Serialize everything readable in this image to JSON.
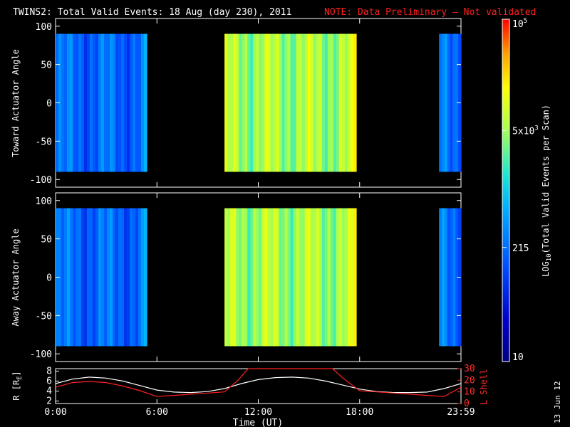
{
  "title": "TWINS2: Total Valid Events: 18 Aug (day 230), 2011",
  "note": "NOTE: Data Preliminary — Not validated",
  "date_stamp": "13 Jun 12",
  "colorbar": {
    "label": "LOG10(Total Valid Events per Scan)",
    "label_main": "LOG",
    "label_sub": "10",
    "label_rest": "(Total Valid Events per Scan)",
    "ticks": [
      {
        "base": "10",
        "exp": "",
        "value": 10
      },
      {
        "base": "215",
        "exp": "",
        "value": 215
      },
      {
        "base": "5x10",
        "exp": "3",
        "value": 5000
      },
      {
        "base": "10",
        "exp": "5",
        "value": 100000
      }
    ],
    "range": [
      10,
      100000
    ],
    "scale": "log"
  },
  "chart_data": [
    {
      "type": "heatmap",
      "ylabel": "Toward Actuator Angle",
      "ylim": [
        -110,
        110
      ],
      "yticks": [
        "100",
        "50",
        "0",
        "-50",
        "-100"
      ],
      "xlim": [
        0,
        24
      ],
      "angle_range": [
        -90,
        90
      ],
      "time_blocks": [
        {
          "start": 0.0,
          "end": 5.4,
          "level": 0.32
        },
        {
          "start": 10.0,
          "end": 17.8,
          "level": 0.68
        },
        {
          "start": 22.7,
          "end": 24.0,
          "level": 0.35
        }
      ]
    },
    {
      "type": "heatmap",
      "ylabel": "Away Actuator Angle",
      "ylim": [
        -110,
        110
      ],
      "yticks": [
        "100",
        "50",
        "0",
        "-50",
        "-100"
      ],
      "xlim": [
        0,
        24
      ],
      "angle_range": [
        -90,
        90
      ],
      "time_blocks": [
        {
          "start": 0.0,
          "end": 5.4,
          "level": 0.32
        },
        {
          "start": 10.0,
          "end": 17.8,
          "level": 0.68
        },
        {
          "start": 22.7,
          "end": 24.0,
          "level": 0.35
        }
      ]
    },
    {
      "type": "line",
      "xlabel": "Time (UT)",
      "ylabel_left": "R [RE]",
      "ylabel_left_main": "R [R",
      "ylabel_left_sub": "E",
      "ylabel_left_end": "]",
      "ylabel_right": "L Shell",
      "yticks_left": [
        "8",
        "6",
        "4",
        "2"
      ],
      "ylim_left": [
        1.5,
        8.5
      ],
      "yticks_right": [
        "30",
        "20",
        "10",
        "0"
      ],
      "ylim_right": [
        0,
        30
      ],
      "xticks": [
        "0:00",
        "6:00",
        "12:00",
        "18:00",
        "23:59"
      ],
      "xtick_values": [
        0,
        6,
        12,
        18,
        24
      ],
      "xlim": [
        0,
        24
      ],
      "series": [
        {
          "color": "#ffffff",
          "axis": "left",
          "x": [
            0,
            1,
            2,
            3,
            4,
            5,
            6,
            7,
            8,
            9,
            10,
            11,
            12,
            13,
            14,
            15,
            16,
            17,
            18,
            19,
            20,
            21,
            22,
            23,
            24
          ],
          "y": [
            5.5,
            6.4,
            6.8,
            6.6,
            6.0,
            5.1,
            4.2,
            3.8,
            3.7,
            3.9,
            4.5,
            5.5,
            6.3,
            6.7,
            6.8,
            6.6,
            6.0,
            5.2,
            4.4,
            3.9,
            3.7,
            3.7,
            3.8,
            4.5,
            5.5
          ]
        },
        {
          "color": "#ff2020",
          "axis": "right",
          "x": [
            0,
            1,
            2,
            3,
            4,
            5,
            6,
            7,
            8,
            9,
            10,
            10.8,
            11.4,
            16.4,
            17,
            18,
            19,
            20,
            21,
            22,
            23,
            24
          ],
          "y": [
            14,
            18,
            19,
            18,
            15,
            11,
            6,
            7,
            8,
            9,
            10,
            20,
            30,
            30,
            22,
            11,
            10,
            9,
            8,
            7,
            6,
            14
          ]
        }
      ]
    }
  ]
}
